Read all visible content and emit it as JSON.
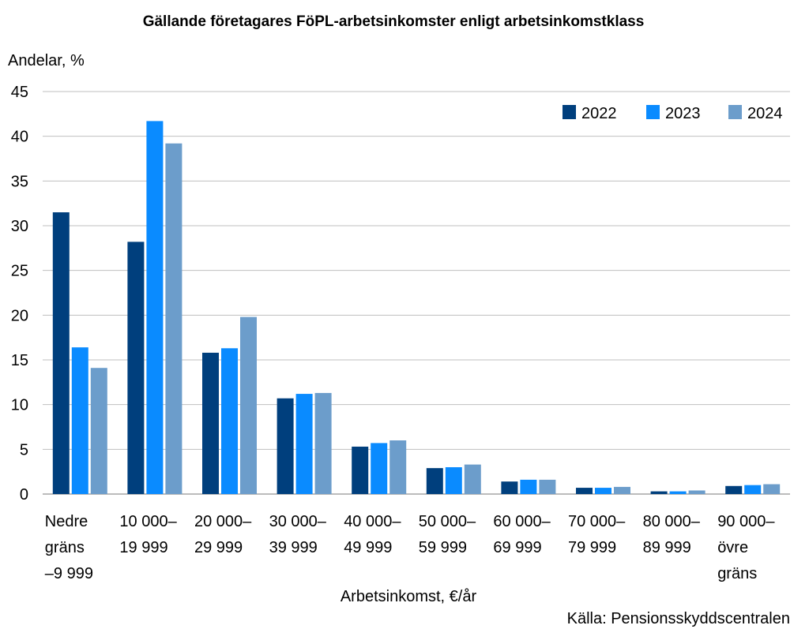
{
  "chart_data": {
    "type": "bar",
    "title": "Gällande företagares FöPL-arbetsinkomster enligt arbetsinkomstklass",
    "ylabel": "Andelar, %",
    "xlabel": "Arbetsinkomst, €/år",
    "source": "Källa: Pensionsskyddscentralen",
    "ylim": [
      0,
      45
    ],
    "yticks": [
      0,
      5,
      10,
      15,
      20,
      25,
      30,
      35,
      40,
      45
    ],
    "grid": true,
    "legend_position": "top-right",
    "categories": [
      [
        "Nedre",
        "gräns",
        "–9 999"
      ],
      [
        "10 000–",
        "19 999"
      ],
      [
        "20 000–",
        "29 999"
      ],
      [
        "30 000–",
        "39 999"
      ],
      [
        "40 000–",
        "49 999"
      ],
      [
        "50 000–",
        "59 999"
      ],
      [
        "60 000–",
        "69 999"
      ],
      [
        "70 000–",
        "79 999"
      ],
      [
        "80 000–",
        "89 999"
      ],
      [
        "90 000–",
        "övre",
        "gräns"
      ]
    ],
    "series": [
      {
        "name": "2022",
        "color": "#003f7d",
        "values": [
          31.5,
          28.2,
          15.8,
          10.7,
          5.3,
          2.9,
          1.4,
          0.7,
          0.3,
          0.9
        ]
      },
      {
        "name": "2023",
        "color": "#0a8bff",
        "values": [
          16.4,
          41.7,
          16.3,
          11.2,
          5.7,
          3.0,
          1.6,
          0.7,
          0.3,
          1.0
        ]
      },
      {
        "name": "2024",
        "color": "#6c9dcb",
        "values": [
          14.1,
          39.2,
          19.8,
          11.3,
          6.0,
          3.3,
          1.6,
          0.8,
          0.4,
          1.1
        ]
      }
    ]
  }
}
